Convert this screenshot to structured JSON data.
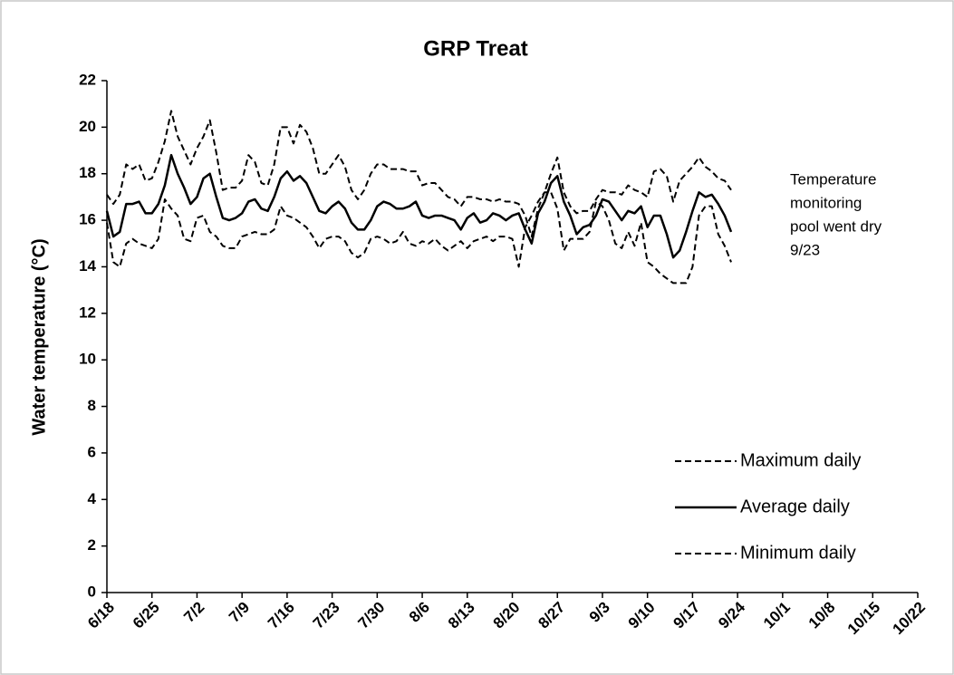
{
  "chart_data": {
    "type": "line",
    "title": "GRP Treat",
    "y_label": "Water temperature  (°C)",
    "annotation": [
      "Temperature",
      "monitoring",
      "pool went dry",
      "9/23"
    ],
    "categories": [
      "6/18",
      null,
      null,
      null,
      null,
      null,
      null,
      "6/25",
      null,
      null,
      null,
      null,
      null,
      null,
      "7/2",
      null,
      null,
      null,
      null,
      null,
      null,
      "7/9",
      null,
      null,
      null,
      null,
      null,
      null,
      "7/16",
      null,
      null,
      null,
      null,
      null,
      null,
      "7/23",
      null,
      null,
      null,
      null,
      null,
      null,
      "7/30",
      null,
      null,
      null,
      null,
      null,
      null,
      "8/6",
      null,
      null,
      null,
      null,
      null,
      null,
      "8/13",
      null,
      null,
      null,
      null,
      null,
      null,
      "8/20",
      null,
      null,
      null,
      null,
      null,
      null,
      "8/27",
      null,
      null,
      null,
      null,
      null,
      null,
      "9/3",
      null,
      null,
      null,
      null,
      null,
      null,
      "9/10",
      null,
      null,
      null,
      null,
      null,
      null,
      "9/17",
      null,
      null,
      null,
      null,
      null,
      null,
      "9/24",
      null,
      null,
      null,
      null,
      null,
      null,
      "10/1",
      null,
      null,
      null,
      null,
      null,
      null,
      "10/8",
      null,
      null,
      null,
      null,
      null,
      null,
      "10/15",
      null,
      null,
      null,
      null,
      null,
      null,
      "10/22"
    ],
    "series": [
      {
        "name": "Maximum daily",
        "color": "#000000",
        "dash": "dashed",
        "values": [
          17.1,
          16.7,
          17.1,
          18.4,
          18.2,
          18.4,
          17.7,
          17.8,
          18.5,
          19.4,
          20.7,
          19.6,
          19.0,
          18.4,
          19.1,
          19.6,
          20.3,
          18.9,
          17.3,
          17.4,
          17.4,
          17.7,
          18.8,
          18.5,
          17.6,
          17.5,
          18.4,
          20.0,
          20.0,
          19.3,
          20.1,
          19.8,
          19.1,
          18.0,
          18.0,
          18.4,
          18.8,
          18.3,
          17.3,
          16.9,
          17.3,
          18.0,
          18.4,
          18.4,
          18.2,
          18.2,
          18.2,
          18.1,
          18.1,
          17.5,
          17.6,
          17.6,
          17.3,
          17.0,
          16.9,
          16.6,
          17.0,
          17.0,
          16.9,
          16.9,
          16.8,
          16.9,
          16.8,
          16.8,
          16.7,
          16.2,
          15.3,
          16.5,
          17.2,
          18.0,
          18.7,
          17.2,
          16.6,
          16.3,
          16.4,
          16.4,
          16.9,
          17.3,
          17.2,
          17.2,
          17.1,
          17.5,
          17.3,
          17.2,
          17.0,
          18.1,
          18.2,
          17.9,
          16.8,
          17.7,
          18.0,
          18.3,
          18.7,
          18.3,
          18.1,
          17.8,
          17.7,
          17.3,
          null,
          null,
          null,
          null,
          null,
          null,
          null,
          null,
          null,
          null,
          null,
          null,
          null,
          null,
          null,
          null,
          null,
          null,
          null,
          null,
          null,
          null,
          null,
          null,
          null,
          null,
          null,
          null,
          null
        ]
      },
      {
        "name": "Average daily",
        "color": "#000000",
        "dash": "solid",
        "values": [
          16.4,
          15.3,
          15.5,
          16.7,
          16.7,
          16.8,
          16.3,
          16.3,
          16.7,
          17.5,
          18.8,
          18.0,
          17.4,
          16.7,
          17.0,
          17.8,
          18.0,
          17.0,
          16.1,
          16.0,
          16.1,
          16.3,
          16.8,
          16.9,
          16.5,
          16.4,
          17.0,
          17.8,
          18.1,
          17.7,
          17.9,
          17.6,
          17.0,
          16.4,
          16.3,
          16.6,
          16.8,
          16.5,
          15.9,
          15.6,
          15.6,
          16.0,
          16.6,
          16.8,
          16.7,
          16.5,
          16.5,
          16.6,
          16.8,
          16.2,
          16.1,
          16.2,
          16.2,
          16.1,
          16.0,
          15.6,
          16.1,
          16.3,
          15.9,
          16.0,
          16.3,
          16.2,
          16.0,
          16.2,
          16.3,
          15.6,
          15.0,
          16.3,
          16.8,
          17.6,
          17.9,
          16.8,
          16.2,
          15.4,
          15.7,
          15.8,
          16.2,
          16.9,
          16.8,
          16.4,
          16.0,
          16.4,
          16.3,
          16.6,
          15.7,
          16.2,
          16.2,
          15.4,
          14.4,
          14.7,
          15.5,
          16.4,
          17.2,
          17.0,
          17.1,
          16.7,
          16.2,
          15.5,
          null,
          null,
          null,
          null,
          null,
          null,
          null,
          null,
          null,
          null,
          null,
          null,
          null,
          null,
          null,
          null,
          null,
          null,
          null,
          null,
          null,
          null,
          null,
          null,
          null,
          null,
          null,
          null,
          null
        ]
      },
      {
        "name": "Minimum daily",
        "color": "#000000",
        "dash": "dashed",
        "values": [
          15.9,
          14.2,
          14.0,
          15.0,
          15.2,
          15.0,
          14.9,
          14.8,
          15.2,
          16.9,
          16.5,
          16.2,
          15.2,
          15.1,
          16.1,
          16.2,
          15.5,
          15.3,
          14.9,
          14.8,
          14.8,
          15.3,
          15.4,
          15.5,
          15.4,
          15.4,
          15.6,
          16.6,
          16.2,
          16.1,
          15.9,
          15.7,
          15.3,
          14.8,
          15.2,
          15.3,
          15.3,
          15.1,
          14.6,
          14.4,
          14.6,
          15.2,
          15.3,
          15.2,
          15.0,
          15.1,
          15.5,
          15.0,
          14.9,
          15.1,
          15.0,
          15.2,
          14.9,
          14.7,
          14.9,
          15.1,
          14.8,
          15.1,
          15.2,
          15.3,
          15.1,
          15.3,
          15.3,
          15.2,
          14.0,
          15.7,
          16.2,
          16.8,
          17.2,
          17.2,
          16.5,
          14.7,
          15.2,
          15.2,
          15.2,
          15.5,
          16.8,
          16.6,
          16.0,
          15.0,
          14.8,
          15.5,
          14.9,
          15.9,
          14.2,
          14.0,
          13.7,
          13.5,
          13.3,
          13.3,
          13.3,
          14.0,
          16.2,
          16.6,
          16.6,
          15.4,
          14.9,
          14.2,
          null,
          null,
          null,
          null,
          null,
          null,
          null,
          null,
          null,
          null,
          null,
          null,
          null,
          null,
          null,
          null,
          null,
          null,
          null,
          null,
          null,
          null,
          null,
          null,
          null,
          null,
          null,
          null,
          null
        ]
      }
    ],
    "ylim": [
      0,
      22
    ],
    "yticks": [
      0,
      2,
      4,
      6,
      8,
      10,
      12,
      14,
      16,
      18,
      20,
      22
    ],
    "grid": false,
    "legend": "lower right"
  }
}
